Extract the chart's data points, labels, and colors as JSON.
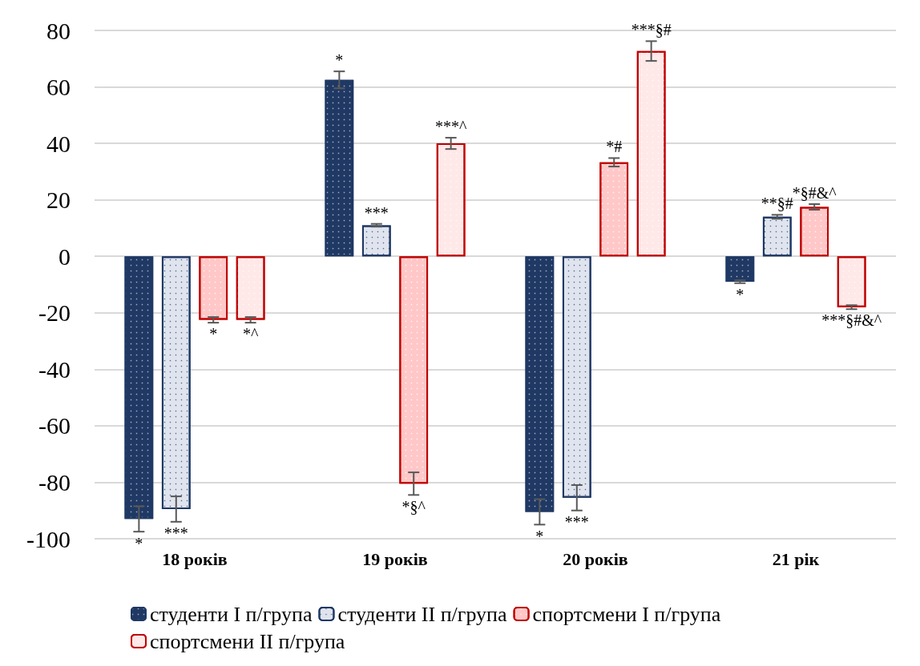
{
  "chart_data": {
    "type": "bar",
    "categories": [
      "18 років",
      "19 років",
      "20 років",
      "21 рік"
    ],
    "series": [
      {
        "name": "студенти I п/група",
        "color": "#1f3864",
        "values": [
          -93,
          62.5,
          -90.5,
          -9
        ],
        "errors": [
          4.5,
          3,
          4.5,
          0.5
        ],
        "value_labels": [
          "*",
          "*",
          "*",
          "*"
        ]
      },
      {
        "name": "студенти II п/група",
        "color": "#dfe4ee",
        "values": [
          -89.5,
          11,
          -85.5,
          14
        ],
        "errors": [
          4.5,
          0.5,
          4.5,
          0.7
        ],
        "value_labels": [
          "***",
          "***",
          "***",
          "**§#"
        ]
      },
      {
        "name": "спортсмени I п/група",
        "color": "#ffc7c7",
        "values": [
          -22.5,
          -80.5,
          33.3,
          17.5
        ],
        "errors": [
          1,
          4,
          1.5,
          1
        ],
        "value_labels": [
          "*",
          "*§^",
          "*#",
          "*§#&^"
        ]
      },
      {
        "name": "спортсмени II п/група",
        "color": "#ffe8e8",
        "values": [
          -22.5,
          40,
          72.7,
          -18
        ],
        "errors": [
          1,
          2,
          3.5,
          0.7
        ],
        "value_labels": [
          "*^",
          "***^",
          "***§#",
          "***§#&^"
        ]
      }
    ],
    "ylim": [
      -100,
      80
    ],
    "yticks": [
      -100,
      -80,
      -60,
      -40,
      -20,
      0,
      20,
      40,
      60,
      80
    ],
    "grid": "y",
    "legend": "bottom"
  }
}
